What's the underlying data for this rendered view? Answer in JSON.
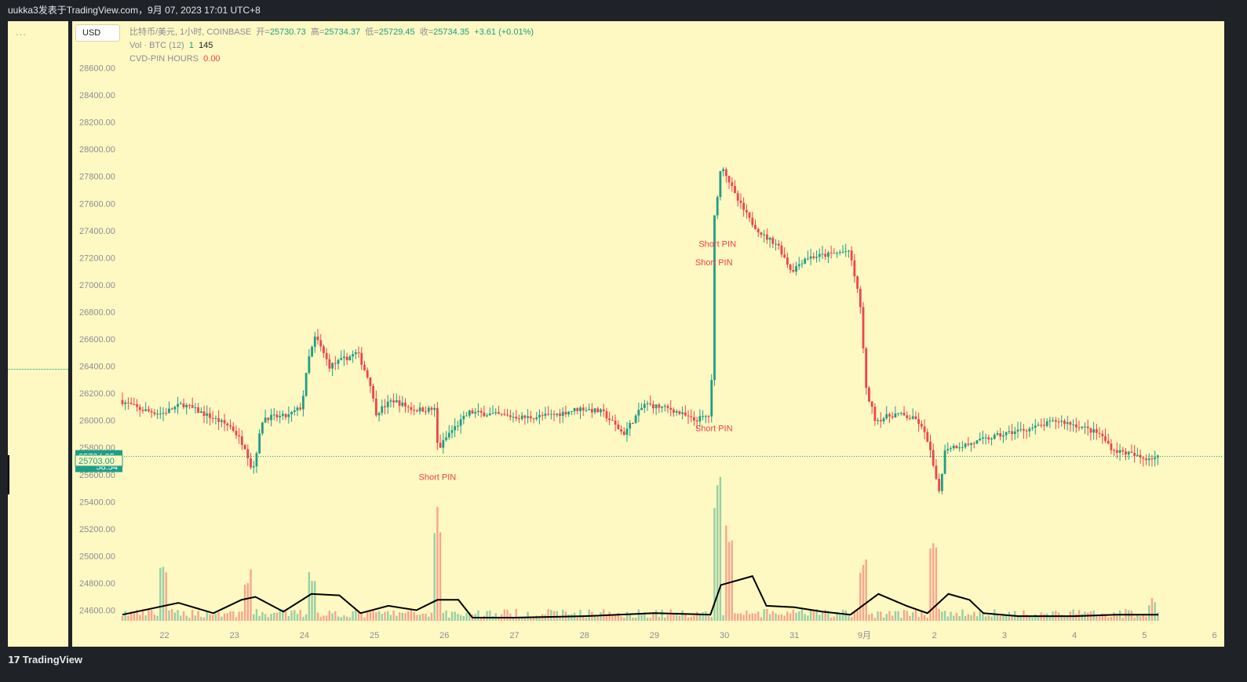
{
  "header": {
    "caption": "uukka3发表于TradingView.com，9月 07, 2023 17:01 UTC+8"
  },
  "left_panel": {
    "menu_dots": "..."
  },
  "symbol": {
    "currency": "USD"
  },
  "legend": {
    "instrument": "比特币/美元, 1小时, COINBASE",
    "open_label": "开=",
    "open": "25730.73",
    "high_label": "高=",
    "high": "25734.37",
    "low_label": "低=",
    "low": "25729.45",
    "close_label": "收=",
    "close": "25734.35",
    "change": "+3.61 (+0.01%)",
    "vol_label": "Vol · BTC (12)",
    "vol_value1": "1",
    "vol_value2": "145",
    "cvd_label": "CVD-PIN HOURS",
    "cvd_value": "0.00"
  },
  "price_tags": {
    "last_price": "25734.35",
    "countdown": "58:54",
    "secondary": "25703.00"
  },
  "footer": {
    "logo_mark": "𝟭𝟳",
    "logo_text": "TradingView"
  },
  "colors": {
    "up": "#1e9e86",
    "down": "#f0434d",
    "background": "#fef8c2",
    "volume_ma": "#000000"
  },
  "chart_data": {
    "type": "candlestick",
    "timeframe": "1小时",
    "y_ticks": [
      "28600.00",
      "28400.00",
      "28200.00",
      "28000.00",
      "27800.00",
      "27600.00",
      "27400.00",
      "27200.00",
      "27000.00",
      "26800.00",
      "26600.00",
      "26400.00",
      "26200.00",
      "26000.00",
      "25800.00",
      "25600.00",
      "25400.00",
      "25200.00",
      "25000.00",
      "24800.00",
      "24600.00"
    ],
    "ylim": [
      24530,
      28700
    ],
    "x_ticks": [
      "22",
      "23",
      "24",
      "25",
      "26",
      "27",
      "28",
      "29",
      "30",
      "31",
      "9月",
      "2",
      "3",
      "4",
      "5",
      "6"
    ],
    "price_path": [
      [
        21.4,
        26150
      ],
      [
        21.7,
        26080
      ],
      [
        22.0,
        26050
      ],
      [
        22.3,
        26120
      ],
      [
        22.6,
        26050
      ],
      [
        23.0,
        25950
      ],
      [
        23.2,
        25800
      ],
      [
        23.3,
        25620
      ],
      [
        23.45,
        26020
      ],
      [
        23.8,
        26030
      ],
      [
        24.0,
        26100
      ],
      [
        24.1,
        26450
      ],
      [
        24.2,
        26620
      ],
      [
        24.4,
        26400
      ],
      [
        24.6,
        26450
      ],
      [
        24.8,
        26500
      ],
      [
        25.0,
        26250
      ],
      [
        25.05,
        26050
      ],
      [
        25.3,
        26150
      ],
      [
        25.6,
        26080
      ],
      [
        25.9,
        26080
      ],
      [
        25.95,
        25780
      ],
      [
        26.1,
        25900
      ],
      [
        26.4,
        26060
      ],
      [
        26.8,
        26040
      ],
      [
        27.2,
        26020
      ],
      [
        27.6,
        26040
      ],
      [
        28.0,
        26090
      ],
      [
        28.3,
        26060
      ],
      [
        28.6,
        25900
      ],
      [
        28.9,
        26120
      ],
      [
        29.3,
        26080
      ],
      [
        29.6,
        26000
      ],
      [
        29.85,
        26040
      ],
      [
        29.9,
        27500
      ],
      [
        30.0,
        27900
      ],
      [
        30.2,
        27650
      ],
      [
        30.4,
        27480
      ],
      [
        30.6,
        27360
      ],
      [
        30.8,
        27300
      ],
      [
        31.0,
        27100
      ],
      [
        31.2,
        27200
      ],
      [
        31.5,
        27220
      ],
      [
        31.8,
        27250
      ],
      [
        31.85,
        27200
      ],
      [
        32.0,
        26800
      ],
      [
        32.05,
        26250
      ],
      [
        32.2,
        26000
      ],
      [
        32.5,
        26050
      ],
      [
        32.8,
        26000
      ],
      [
        32.95,
        25850
      ],
      [
        33.05,
        25600
      ],
      [
        33.1,
        25450
      ],
      [
        33.2,
        25800
      ],
      [
        33.5,
        25820
      ],
      [
        33.9,
        25880
      ],
      [
        34.2,
        25920
      ],
      [
        34.5,
        25950
      ],
      [
        34.8,
        26000
      ],
      [
        35.1,
        25960
      ],
      [
        35.4,
        25900
      ],
      [
        35.6,
        25780
      ],
      [
        35.8,
        25760
      ],
      [
        36.0,
        25720
      ],
      [
        36.2,
        25730
      ]
    ],
    "volume_spikes": [
      [
        22.0,
        0.35
      ],
      [
        23.2,
        0.3
      ],
      [
        24.1,
        0.3
      ],
      [
        25.9,
        0.72
      ],
      [
        29.9,
        0.95
      ],
      [
        30.05,
        0.6
      ],
      [
        32.0,
        0.35
      ],
      [
        33.0,
        0.5
      ],
      [
        36.1,
        0.1
      ]
    ],
    "volume_ma": [
      [
        21.4,
        0.02
      ],
      [
        21.8,
        0.06
      ],
      [
        22.2,
        0.1
      ],
      [
        22.7,
        0.03
      ],
      [
        23.1,
        0.12
      ],
      [
        23.3,
        0.14
      ],
      [
        23.7,
        0.04
      ],
      [
        24.1,
        0.16
      ],
      [
        24.5,
        0.15
      ],
      [
        24.8,
        0.03
      ],
      [
        25.2,
        0.08
      ],
      [
        25.6,
        0.05
      ],
      [
        25.9,
        0.12
      ],
      [
        26.2,
        0.12
      ],
      [
        26.4,
        0.0
      ],
      [
        27.0,
        0.0
      ],
      [
        28.0,
        0.01
      ],
      [
        29.0,
        0.03
      ],
      [
        29.8,
        0.02
      ],
      [
        29.95,
        0.22
      ],
      [
        30.4,
        0.28
      ],
      [
        30.6,
        0.08
      ],
      [
        31.0,
        0.07
      ],
      [
        31.4,
        0.04
      ],
      [
        31.8,
        0.02
      ],
      [
        32.2,
        0.16
      ],
      [
        32.6,
        0.08
      ],
      [
        32.9,
        0.03
      ],
      [
        33.2,
        0.16
      ],
      [
        33.5,
        0.12
      ],
      [
        33.7,
        0.03
      ],
      [
        34.2,
        0.01
      ],
      [
        35.0,
        0.01
      ],
      [
        35.6,
        0.02
      ],
      [
        36.2,
        0.02
      ]
    ],
    "annotations": [
      {
        "text": "Short PIN",
        "x": 25.9,
        "price": 25560
      },
      {
        "text": "Short PIN",
        "x": 29.9,
        "price": 27280
      },
      {
        "text": "Short PIN",
        "x": 29.85,
        "price": 27145
      },
      {
        "text": "Short PIN",
        "x": 29.85,
        "price": 25920
      }
    ]
  }
}
